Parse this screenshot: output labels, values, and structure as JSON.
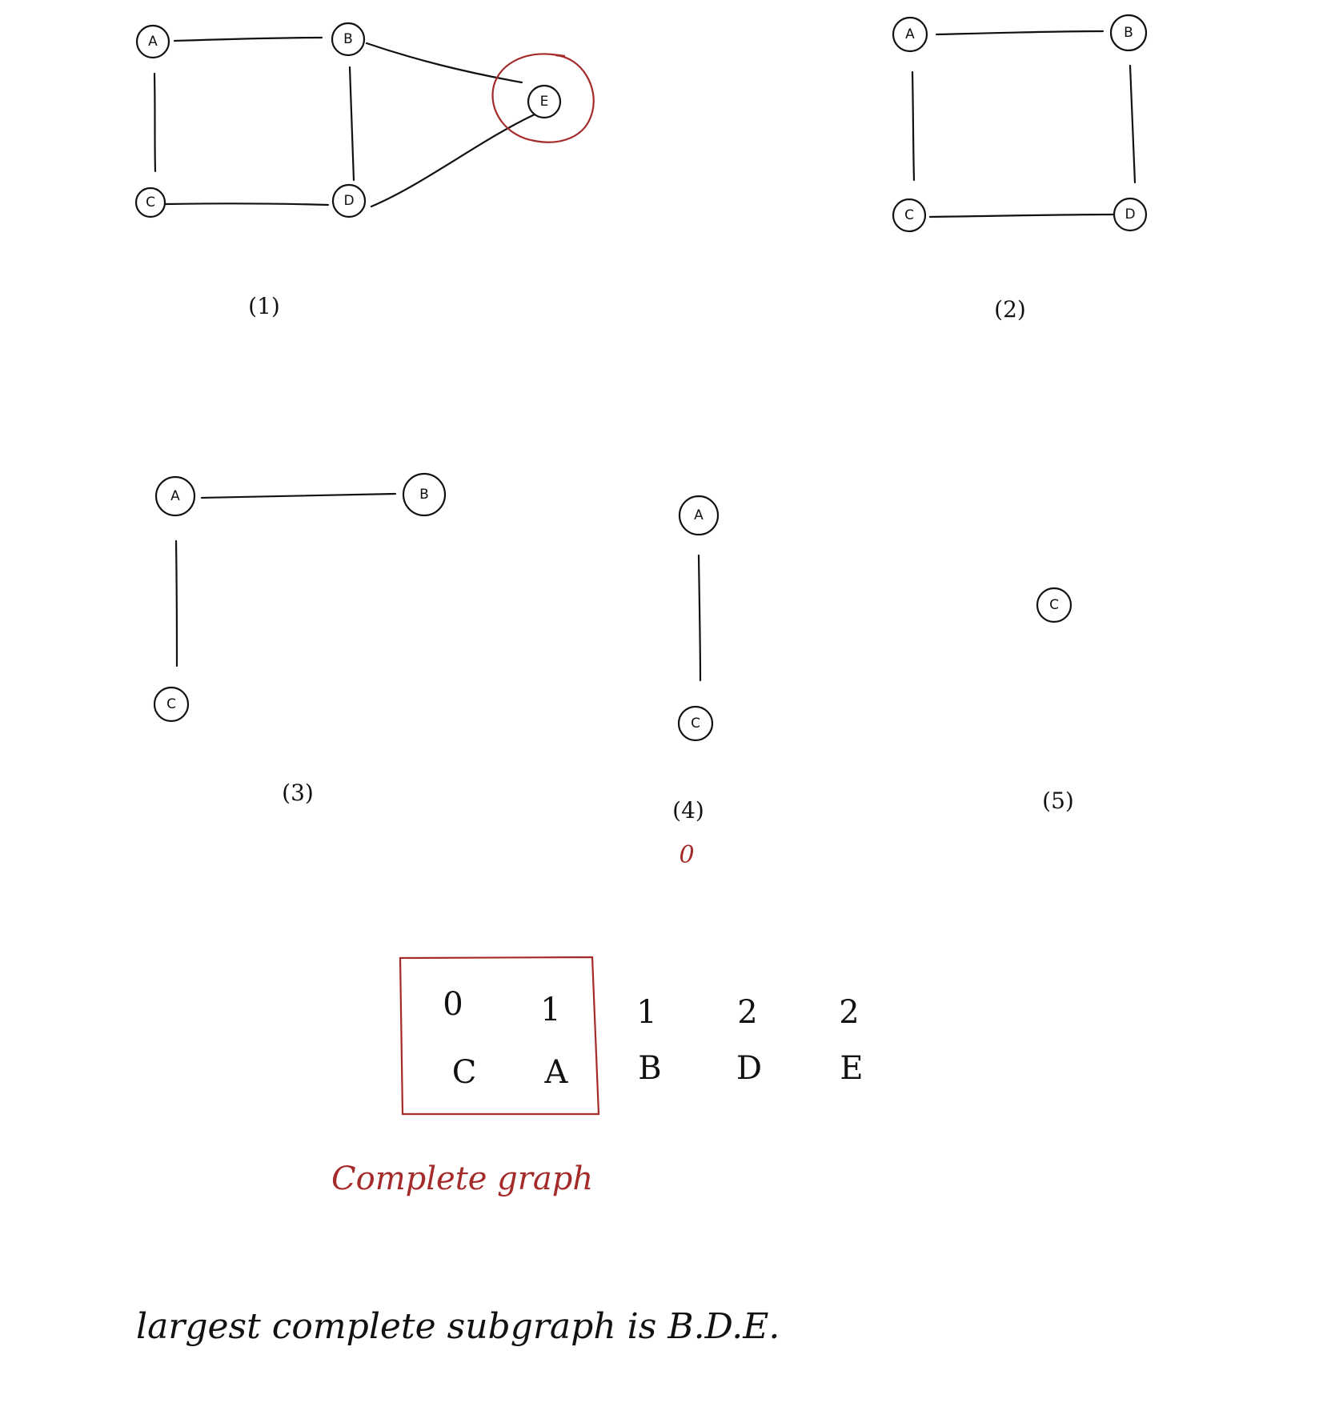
{
  "graphs": [
    {
      "caption": "(1)",
      "nodes": [
        {
          "id": "A",
          "label": "A"
        },
        {
          "id": "B",
          "label": "B"
        },
        {
          "id": "C",
          "label": "C"
        },
        {
          "id": "D",
          "label": "D"
        },
        {
          "id": "E",
          "label": "E",
          "highlight": true
        }
      ],
      "edges": [
        [
          "A",
          "B"
        ],
        [
          "A",
          "C"
        ],
        [
          "B",
          "D"
        ],
        [
          "C",
          "D"
        ],
        [
          "B",
          "E"
        ],
        [
          "D",
          "E"
        ]
      ]
    },
    {
      "caption": "(2)",
      "nodes": [
        {
          "id": "A",
          "label": "A"
        },
        {
          "id": "B",
          "label": "B"
        },
        {
          "id": "C",
          "label": "C"
        },
        {
          "id": "D",
          "label": "D"
        }
      ],
      "edges": [
        [
          "A",
          "B"
        ],
        [
          "A",
          "C"
        ],
        [
          "B",
          "D"
        ],
        [
          "C",
          "D"
        ]
      ]
    },
    {
      "caption": "(3)",
      "nodes": [
        {
          "id": "A",
          "label": "A"
        },
        {
          "id": "B",
          "label": "B"
        },
        {
          "id": "C",
          "label": "C"
        }
      ],
      "edges": [
        [
          "A",
          "B"
        ],
        [
          "A",
          "C"
        ]
      ]
    },
    {
      "caption": "(4)",
      "annotation": "0",
      "nodes": [
        {
          "id": "A",
          "label": "A"
        },
        {
          "id": "C",
          "label": "C"
        }
      ],
      "edges": [
        [
          "A",
          "C"
        ]
      ]
    },
    {
      "caption": "(5)",
      "nodes": [
        {
          "id": "C",
          "label": "C"
        }
      ],
      "edges": []
    }
  ],
  "core_table": {
    "columns": [
      {
        "core": "0",
        "vertex": "C",
        "boxed": true
      },
      {
        "core": "1",
        "vertex": "A",
        "boxed": true
      },
      {
        "core": "1",
        "vertex": "B"
      },
      {
        "core": "2",
        "vertex": "D"
      },
      {
        "core": "2",
        "vertex": "E"
      }
    ],
    "box_label": "Complete graph"
  },
  "conclusion": "largest complete subgraph is B.D.E.",
  "colors": {
    "ink": "#111111",
    "highlight": "#a52a2a"
  }
}
